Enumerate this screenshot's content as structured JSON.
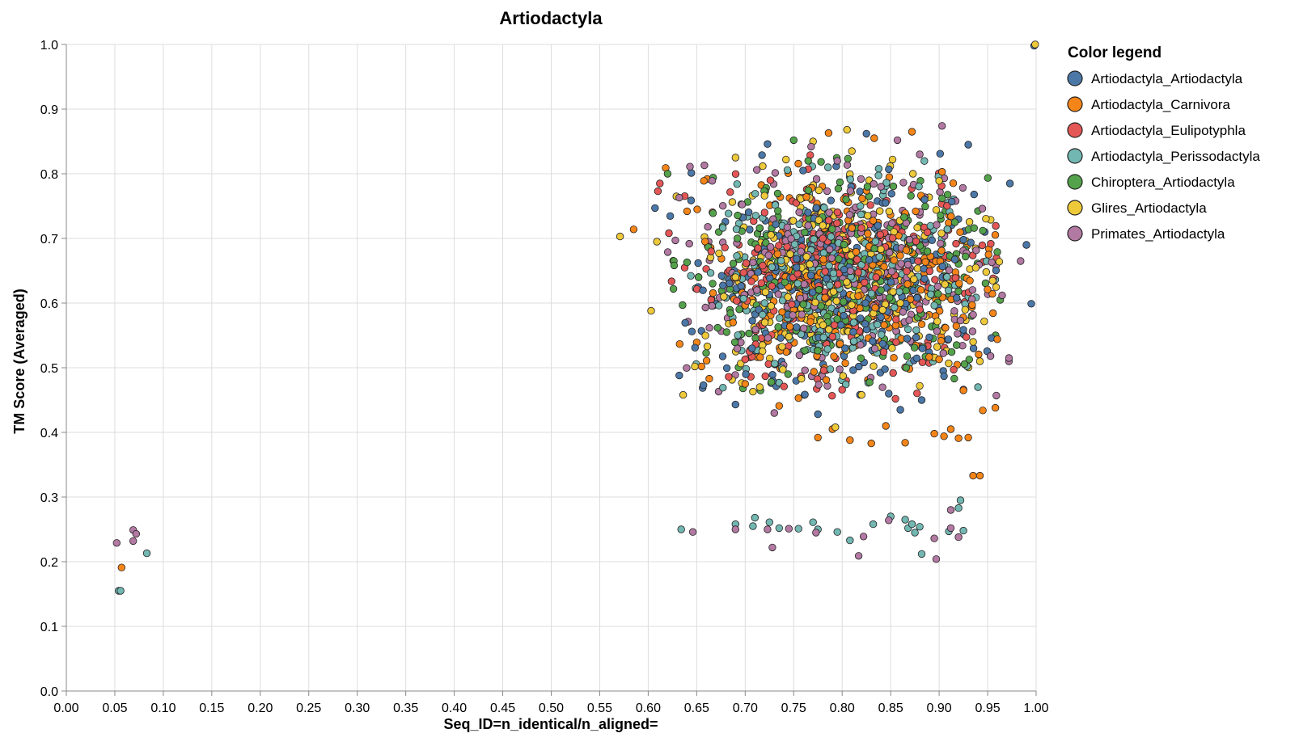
{
  "chart_data": {
    "type": "scatter",
    "title": "Artiodactyla",
    "xlabel": "Seq_ID=n_identical/n_aligned=",
    "ylabel": "TM Score (Averaged)",
    "xlim": [
      0,
      1
    ],
    "ylim": [
      0,
      1
    ],
    "x_ticks": [
      "0.00",
      "0.05",
      "0.10",
      "0.15",
      "0.20",
      "0.25",
      "0.30",
      "0.35",
      "0.40",
      "0.45",
      "0.50",
      "0.55",
      "0.60",
      "0.65",
      "0.70",
      "0.75",
      "0.80",
      "0.85",
      "0.90",
      "0.95",
      "1.00"
    ],
    "y_ticks": [
      "0.0",
      "0.1",
      "0.2",
      "0.3",
      "0.4",
      "0.5",
      "0.6",
      "0.7",
      "0.8",
      "0.9",
      "1.0"
    ],
    "grid": true,
    "legend_title": "Color legend",
    "legend_position": "right",
    "series": [
      {
        "name": "Artiodactyla_Artiodactyla",
        "color": "#4c78a8",
        "points": [
          [
            0.607,
            0.747
          ],
          [
            0.632,
            0.488
          ],
          [
            0.645,
            0.556
          ],
          [
            0.657,
            0.473
          ],
          [
            0.69,
            0.443
          ],
          [
            0.723,
            0.846
          ],
          [
            0.775,
            0.428
          ],
          [
            0.825,
            0.862
          ],
          [
            0.848,
            0.807
          ],
          [
            0.901,
            0.831
          ],
          [
            0.913,
            0.757
          ],
          [
            0.925,
            0.698
          ],
          [
            0.93,
            0.845
          ],
          [
            0.936,
            0.768
          ],
          [
            0.947,
            0.71
          ],
          [
            0.954,
            0.546
          ],
          [
            0.99,
            0.69
          ],
          [
            0.995,
            0.599
          ],
          [
            0.973,
            0.785
          ],
          [
            0.998,
            0.998
          ],
          [
            0.905,
            0.487
          ],
          [
            0.882,
            0.45
          ],
          [
            0.848,
            0.46
          ],
          [
            0.86,
            0.435
          ],
          [
            0.918,
            0.608
          ],
          [
            0.885,
            0.76
          ],
          [
            0.867,
            0.545
          ],
          [
            0.707,
            0.53
          ],
          [
            0.753,
            0.655
          ],
          [
            0.802,
            0.652
          ]
        ]
      },
      {
        "name": "Artiodactyla_Carnivora",
        "color": "#f58518",
        "points": [
          [
            0.057,
            0.191
          ],
          [
            0.585,
            0.714
          ],
          [
            0.618,
            0.809
          ],
          [
            0.64,
            0.742
          ],
          [
            0.655,
            0.502
          ],
          [
            0.663,
            0.483
          ],
          [
            0.7,
            0.475
          ],
          [
            0.735,
            0.441
          ],
          [
            0.755,
            0.453
          ],
          [
            0.775,
            0.392
          ],
          [
            0.79,
            0.405
          ],
          [
            0.808,
            0.388
          ],
          [
            0.83,
            0.383
          ],
          [
            0.845,
            0.41
          ],
          [
            0.865,
            0.384
          ],
          [
            0.895,
            0.398
          ],
          [
            0.905,
            0.394
          ],
          [
            0.912,
            0.405
          ],
          [
            0.92,
            0.391
          ],
          [
            0.93,
            0.392
          ],
          [
            0.935,
            0.333
          ],
          [
            0.942,
            0.333
          ],
          [
            0.945,
            0.434
          ],
          [
            0.958,
            0.438
          ],
          [
            0.95,
            0.621
          ],
          [
            0.872,
            0.865
          ],
          [
            0.833,
            0.855
          ],
          [
            0.786,
            0.863
          ],
          [
            0.903,
            0.803
          ],
          [
            0.934,
            0.597
          ],
          [
            0.951,
            0.675
          ],
          [
            0.925,
            0.465
          ],
          [
            0.9,
            0.513
          ],
          [
            0.96,
            0.544
          ]
        ]
      },
      {
        "name": "Artiodactyla_Eulipotyphla",
        "color": "#e45756",
        "points": [
          [
            0.61,
            0.773
          ],
          [
            0.612,
            0.785
          ],
          [
            0.683,
            0.486
          ],
          [
            0.7,
            0.513
          ],
          [
            0.74,
            0.471
          ],
          [
            0.8,
            0.466
          ],
          [
            0.855,
            0.452
          ],
          [
            0.915,
            0.497
          ],
          [
            0.665,
            0.68
          ],
          [
            0.72,
            0.74
          ],
          [
            0.78,
            0.7
          ],
          [
            0.835,
            0.64
          ],
          [
            0.88,
            0.59
          ],
          [
            0.792,
            0.566
          ],
          [
            0.748,
            0.598
          ]
        ]
      },
      {
        "name": "Artiodactyla_Perissodactyla",
        "color": "#72b7b2",
        "points": [
          [
            0.054,
            0.155
          ],
          [
            0.056,
            0.155
          ],
          [
            0.083,
            0.213
          ],
          [
            0.634,
            0.25
          ],
          [
            0.69,
            0.258
          ],
          [
            0.708,
            0.255
          ],
          [
            0.71,
            0.268
          ],
          [
            0.725,
            0.261
          ],
          [
            0.735,
            0.252
          ],
          [
            0.755,
            0.251
          ],
          [
            0.77,
            0.261
          ],
          [
            0.775,
            0.25
          ],
          [
            0.795,
            0.246
          ],
          [
            0.808,
            0.233
          ],
          [
            0.832,
            0.258
          ],
          [
            0.85,
            0.27
          ],
          [
            0.865,
            0.265
          ],
          [
            0.868,
            0.252
          ],
          [
            0.872,
            0.258
          ],
          [
            0.875,
            0.245
          ],
          [
            0.88,
            0.254
          ],
          [
            0.882,
            0.212
          ],
          [
            0.91,
            0.247
          ],
          [
            0.92,
            0.283
          ],
          [
            0.922,
            0.295
          ],
          [
            0.925,
            0.248
          ],
          [
            0.94,
            0.47
          ],
          [
            0.72,
            0.6
          ],
          [
            0.812,
            0.541
          ]
        ]
      },
      {
        "name": "Chiroptera_Artiodactyla",
        "color": "#54a24b",
        "points": [
          [
            0.626,
            0.622
          ],
          [
            0.64,
            0.663
          ],
          [
            0.652,
            0.64
          ],
          [
            0.667,
            0.794
          ],
          [
            0.704,
            0.553
          ],
          [
            0.727,
            0.478
          ],
          [
            0.75,
            0.852
          ],
          [
            0.765,
            0.82
          ],
          [
            0.796,
            0.777
          ],
          [
            0.826,
            0.78
          ],
          [
            0.866,
            0.5
          ],
          [
            0.888,
            0.68
          ],
          [
            0.903,
            0.762
          ],
          [
            0.918,
            0.535
          ],
          [
            0.936,
            0.716
          ],
          [
            0.945,
            0.712
          ],
          [
            0.963,
            0.605
          ],
          [
            0.96,
            0.679
          ],
          [
            0.62,
            0.8
          ],
          [
            0.76,
            0.598
          ],
          [
            0.84,
            0.62
          ],
          [
            0.692,
            0.7
          ]
        ]
      },
      {
        "name": "Glires_Artiodactyla",
        "color": "#eeca3b",
        "points": [
          [
            0.571,
            0.703
          ],
          [
            0.603,
            0.588
          ],
          [
            0.609,
            0.695
          ],
          [
            0.629,
            0.765
          ],
          [
            0.636,
            0.458
          ],
          [
            0.648,
            0.502
          ],
          [
            0.661,
            0.533
          ],
          [
            0.678,
            0.61
          ],
          [
            0.69,
            0.825
          ],
          [
            0.708,
            0.463
          ],
          [
            0.715,
            0.47
          ],
          [
            0.742,
            0.822
          ],
          [
            0.758,
            0.483
          ],
          [
            0.77,
            0.85
          ],
          [
            0.793,
            0.408
          ],
          [
            0.805,
            0.868
          ],
          [
            0.81,
            0.835
          ],
          [
            0.852,
            0.822
          ],
          [
            0.873,
            0.8
          ],
          [
            0.9,
            0.789
          ],
          [
            0.935,
            0.54
          ],
          [
            0.942,
            0.51
          ],
          [
            0.962,
            0.664
          ],
          [
            0.999,
            1.0
          ],
          [
            0.82,
            0.458
          ],
          [
            0.88,
            0.472
          ],
          [
            0.745,
            0.548
          ],
          [
            0.69,
            0.64
          ],
          [
            0.78,
            0.72
          ],
          [
            0.86,
            0.6
          ]
        ]
      },
      {
        "name": "Primates_Artiodactyla",
        "color": "#b279a2",
        "points": [
          [
            0.052,
            0.229
          ],
          [
            0.069,
            0.249
          ],
          [
            0.069,
            0.232
          ],
          [
            0.072,
            0.243
          ],
          [
            0.628,
            0.697
          ],
          [
            0.643,
            0.811
          ],
          [
            0.646,
            0.246
          ],
          [
            0.658,
            0.813
          ],
          [
            0.69,
            0.25
          ],
          [
            0.712,
            0.62
          ],
          [
            0.723,
            0.25
          ],
          [
            0.728,
            0.222
          ],
          [
            0.73,
            0.43
          ],
          [
            0.745,
            0.251
          ],
          [
            0.773,
            0.245
          ],
          [
            0.795,
            0.82
          ],
          [
            0.817,
            0.209
          ],
          [
            0.822,
            0.239
          ],
          [
            0.848,
            0.264
          ],
          [
            0.857,
            0.852
          ],
          [
            0.895,
            0.236
          ],
          [
            0.897,
            0.204
          ],
          [
            0.912,
            0.252
          ],
          [
            0.912,
            0.28
          ],
          [
            0.92,
            0.238
          ],
          [
            0.922,
            0.573
          ],
          [
            0.935,
            0.582
          ],
          [
            0.953,
            0.518
          ],
          [
            0.959,
            0.457
          ],
          [
            0.972,
            0.51
          ],
          [
            0.972,
            0.515
          ],
          [
            0.984,
            0.665
          ],
          [
            0.965,
            0.612
          ],
          [
            0.903,
            0.874
          ],
          [
            0.768,
            0.842
          ],
          [
            0.712,
            0.806
          ],
          [
            0.666,
            0.789
          ],
          [
            0.632,
            0.763
          ],
          [
            0.84,
            0.78
          ],
          [
            0.88,
            0.83
          ]
        ]
      }
    ],
    "cluster": {
      "x_center": 0.8,
      "y_center": 0.635,
      "x_sd": 0.075,
      "y_sd": 0.075,
      "points_per_series": 260
    }
  }
}
